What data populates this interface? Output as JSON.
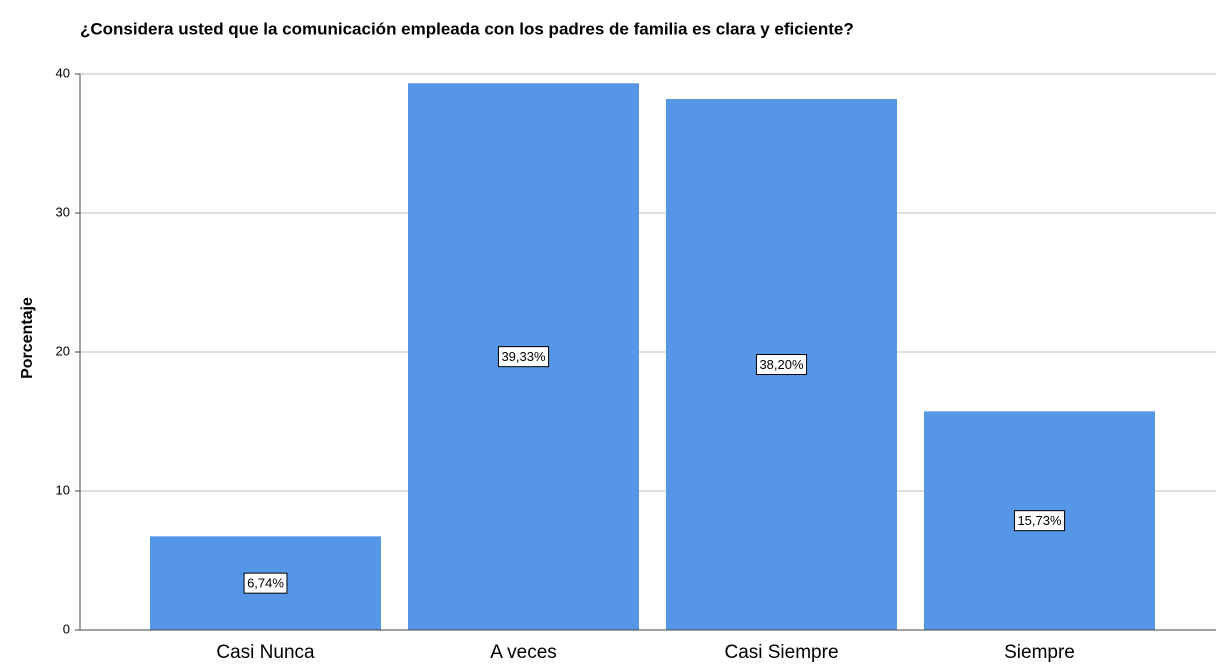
{
  "chart_data": {
    "type": "bar",
    "title": "¿Considera usted que la comunicación empleada con los padres de familia es clara y eficiente?",
    "y_label": "Porcentaje",
    "categories": [
      "Casi Nunca",
      "A veces",
      "Casi Siempre",
      "Siempre"
    ],
    "values": [
      6.74,
      39.33,
      38.2,
      15.73
    ],
    "value_labels": [
      "6,74%",
      "39,33%",
      "38,20%",
      "15,73%"
    ],
    "color": "#5596e6",
    "ylim": [
      0,
      40
    ],
    "yticks": [
      0,
      10,
      20,
      30,
      40
    ],
    "grid": true
  }
}
